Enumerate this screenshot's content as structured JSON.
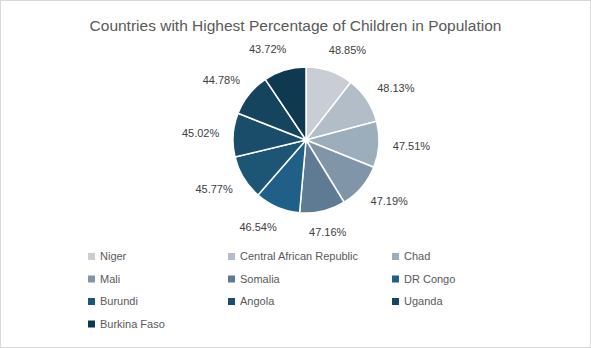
{
  "chart_data": {
    "type": "pie",
    "title": "Countries with Highest Percentage of Children in Population",
    "categories": [
      "Niger",
      "Central African Republic",
      "Chad",
      "Mali",
      "Somalia",
      "DR Congo",
      "Burundi",
      "Angola",
      "Uganda",
      "Burkina Faso"
    ],
    "values": [
      48.85,
      48.13,
      47.51,
      47.19,
      47.16,
      46.54,
      45.77,
      45.02,
      44.78,
      43.72
    ],
    "value_labels": [
      "48.85%",
      "48.13%",
      "47.51%",
      "47.19%",
      "47.16%",
      "46.54%",
      "45.77%",
      "45.02%",
      "44.78%",
      "43.72%"
    ],
    "colors": [
      "#c9ced5",
      "#b3bdc8",
      "#9cadbb",
      "#8095a7",
      "#5e7b93",
      "#205f87",
      "#1d5674",
      "#1a4d69",
      "#14445e",
      "#0e3950"
    ],
    "data_labels": true,
    "legend": "bottom"
  }
}
